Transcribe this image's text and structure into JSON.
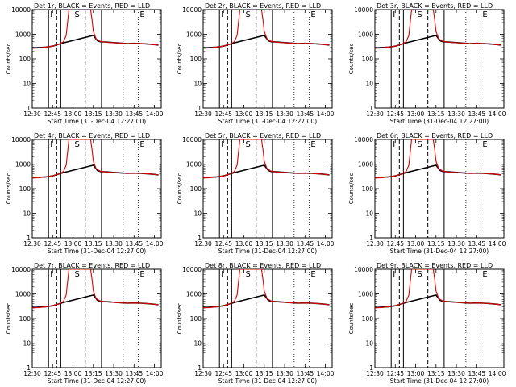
{
  "chart_data": {
    "type": "line",
    "shared": {
      "xlabel": "Start Time (31-Dec-04 12:27:00)",
      "ylabel": "Counts/sec",
      "y_scale": "log",
      "ylim": [
        1,
        10000
      ],
      "y_ticks": [
        1,
        10,
        100,
        1000,
        10000
      ],
      "y_tick_labels": [
        "1",
        "10",
        "100",
        "1000",
        "10000"
      ],
      "xlim": [
        "12:30",
        "14:05"
      ],
      "x_tick_labels": [
        "12:30",
        "12:45",
        "13:00",
        "13:15",
        "13:30",
        "13:45",
        "14:00"
      ],
      "series": [
        {
          "name": "Events",
          "color": "#000000"
        },
        {
          "name": "LLD",
          "color": "#e00000"
        }
      ],
      "markers": [
        {
          "label": "I",
          "time": "12:42"
        },
        {
          "label": "S",
          "time": "13:00"
        },
        {
          "label": "E",
          "time": "13:48"
        }
      ],
      "solid_vlines": [
        "12:42",
        "12:51",
        "13:21"
      ],
      "dashed_vlines": [
        "12:48",
        "13:09"
      ],
      "dotted_vlines": [
        "13:37",
        "13:48"
      ],
      "events": {
        "x": [
          "12:30",
          "12:35",
          "12:40",
          "12:45",
          "12:50",
          "12:53",
          "13:15",
          "13:18",
          "13:20",
          "13:25",
          "13:30",
          "13:35",
          "13:40",
          "13:45",
          "13:50",
          "13:55",
          "14:00",
          "14:03"
        ],
        "y": [
          280,
          290,
          300,
          330,
          400,
          450,
          900,
          550,
          500,
          480,
          460,
          440,
          420,
          430,
          420,
          400,
          380,
          360
        ]
      },
      "lld": {
        "x": [
          "12:30",
          "12:35",
          "12:40",
          "12:45",
          "12:50",
          "12:53",
          "12:55",
          "12:56",
          "12:57",
          "13:13",
          "13:14",
          "13:15",
          "13:17",
          "13:20",
          "13:25",
          "13:30",
          "13:35",
          "13:40",
          "13:45",
          "13:50",
          "13:55",
          "14:00",
          "14:03"
        ],
        "y": [
          270,
          280,
          300,
          330,
          400,
          500,
          900,
          3000,
          10000,
          10000,
          4000,
          1300,
          650,
          520,
          470,
          455,
          435,
          420,
          430,
          420,
          400,
          380,
          360
        ]
      }
    },
    "panels": [
      {
        "title": "Det 1r, BLACK = Events, RED = LLD"
      },
      {
        "title": "Det 2r, BLACK = Events, RED = LLD"
      },
      {
        "title": "Det 3r, BLACK = Events, RED = LLD"
      },
      {
        "title": "Det 4r, BLACK = Events, RED = LLD"
      },
      {
        "title": "Det 5r, BLACK = Events, RED = LLD"
      },
      {
        "title": "Det 6r, BLACK = Events, RED = LLD"
      },
      {
        "title": "Det 7r, BLACK = Events, RED = LLD"
      },
      {
        "title": "Det 8r, BLACK = Events, RED = LLD"
      },
      {
        "title": "Det 9r, BLACK = Events, RED = LLD"
      }
    ]
  }
}
